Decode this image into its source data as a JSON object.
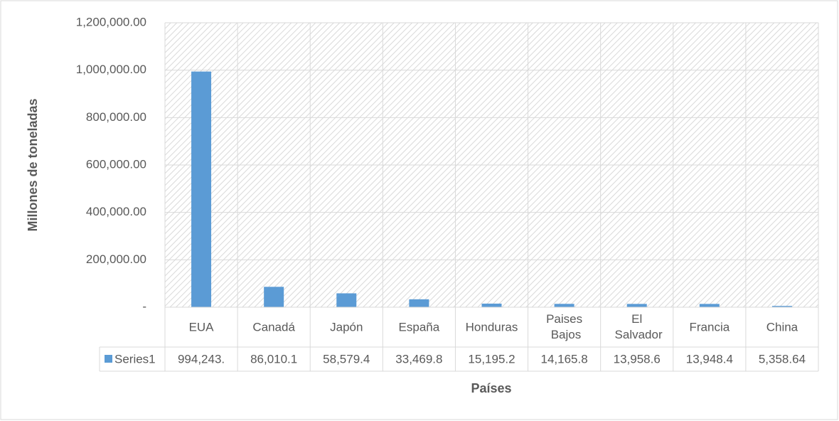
{
  "chart_data": {
    "type": "bar",
    "categories": [
      "EUA",
      "Canadá",
      "Japón",
      "España",
      "Honduras",
      "Paises Bajos",
      "El Salvador",
      "Francia",
      "China"
    ],
    "series": [
      {
        "name": "Series1",
        "color": "#5b9bd5",
        "values": [
          994243,
          86010.1,
          58579.4,
          33469.8,
          15195.2,
          14165.8,
          13958.6,
          13948.4,
          5358.64
        ],
        "value_labels": [
          "994,243.",
          "86,010.1",
          "58,579.4",
          "33,469.8",
          "15,195.2",
          "14,165.8",
          "13,958.6",
          "13,948.4",
          "5,358.64"
        ]
      }
    ],
    "ylabel": "Millones de toneladas",
    "xlabel": "Países",
    "ylim": [
      0,
      1200000
    ],
    "yticks": [
      {
        "value": 0,
        "label": "-"
      },
      {
        "value": 200000,
        "label": "200,000.00"
      },
      {
        "value": 400000,
        "label": "400,000.00"
      },
      {
        "value": 600000,
        "label": "600,000.00"
      },
      {
        "value": 800000,
        "label": "800,000.00"
      },
      {
        "value": 1000000,
        "label": "1,000,000.00"
      },
      {
        "value": 1200000,
        "label": "1,200,000.00"
      }
    ],
    "grid": true
  }
}
